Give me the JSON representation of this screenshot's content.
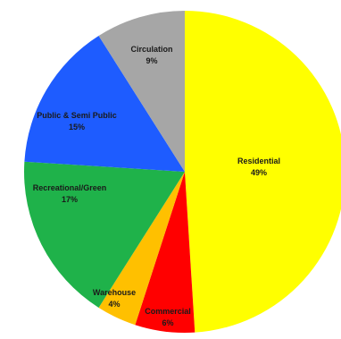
{
  "chart_data": {
    "type": "pie",
    "title": "",
    "start_angle_deg": 0,
    "direction": "clockwise",
    "slices": [
      {
        "label": "Residential",
        "value_label": "49%",
        "value": 49,
        "color": "#ffff00"
      },
      {
        "label": "Commercial",
        "value_label": "6%",
        "value": 6,
        "color": "#ff0000"
      },
      {
        "label": "Warehouse",
        "value_label": "4%",
        "value": 4,
        "color": "#ffc000"
      },
      {
        "label": "Recreational/Green",
        "value_label": "17%",
        "value": 17,
        "color": "#1fb24a"
      },
      {
        "label": "Public & Semi Public",
        "value_label": "15%",
        "value": 15,
        "color": "#1e5cff"
      },
      {
        "label": "Circulation",
        "value_label": "9%",
        "value": 9,
        "color": "#a6a6a6"
      }
    ]
  }
}
